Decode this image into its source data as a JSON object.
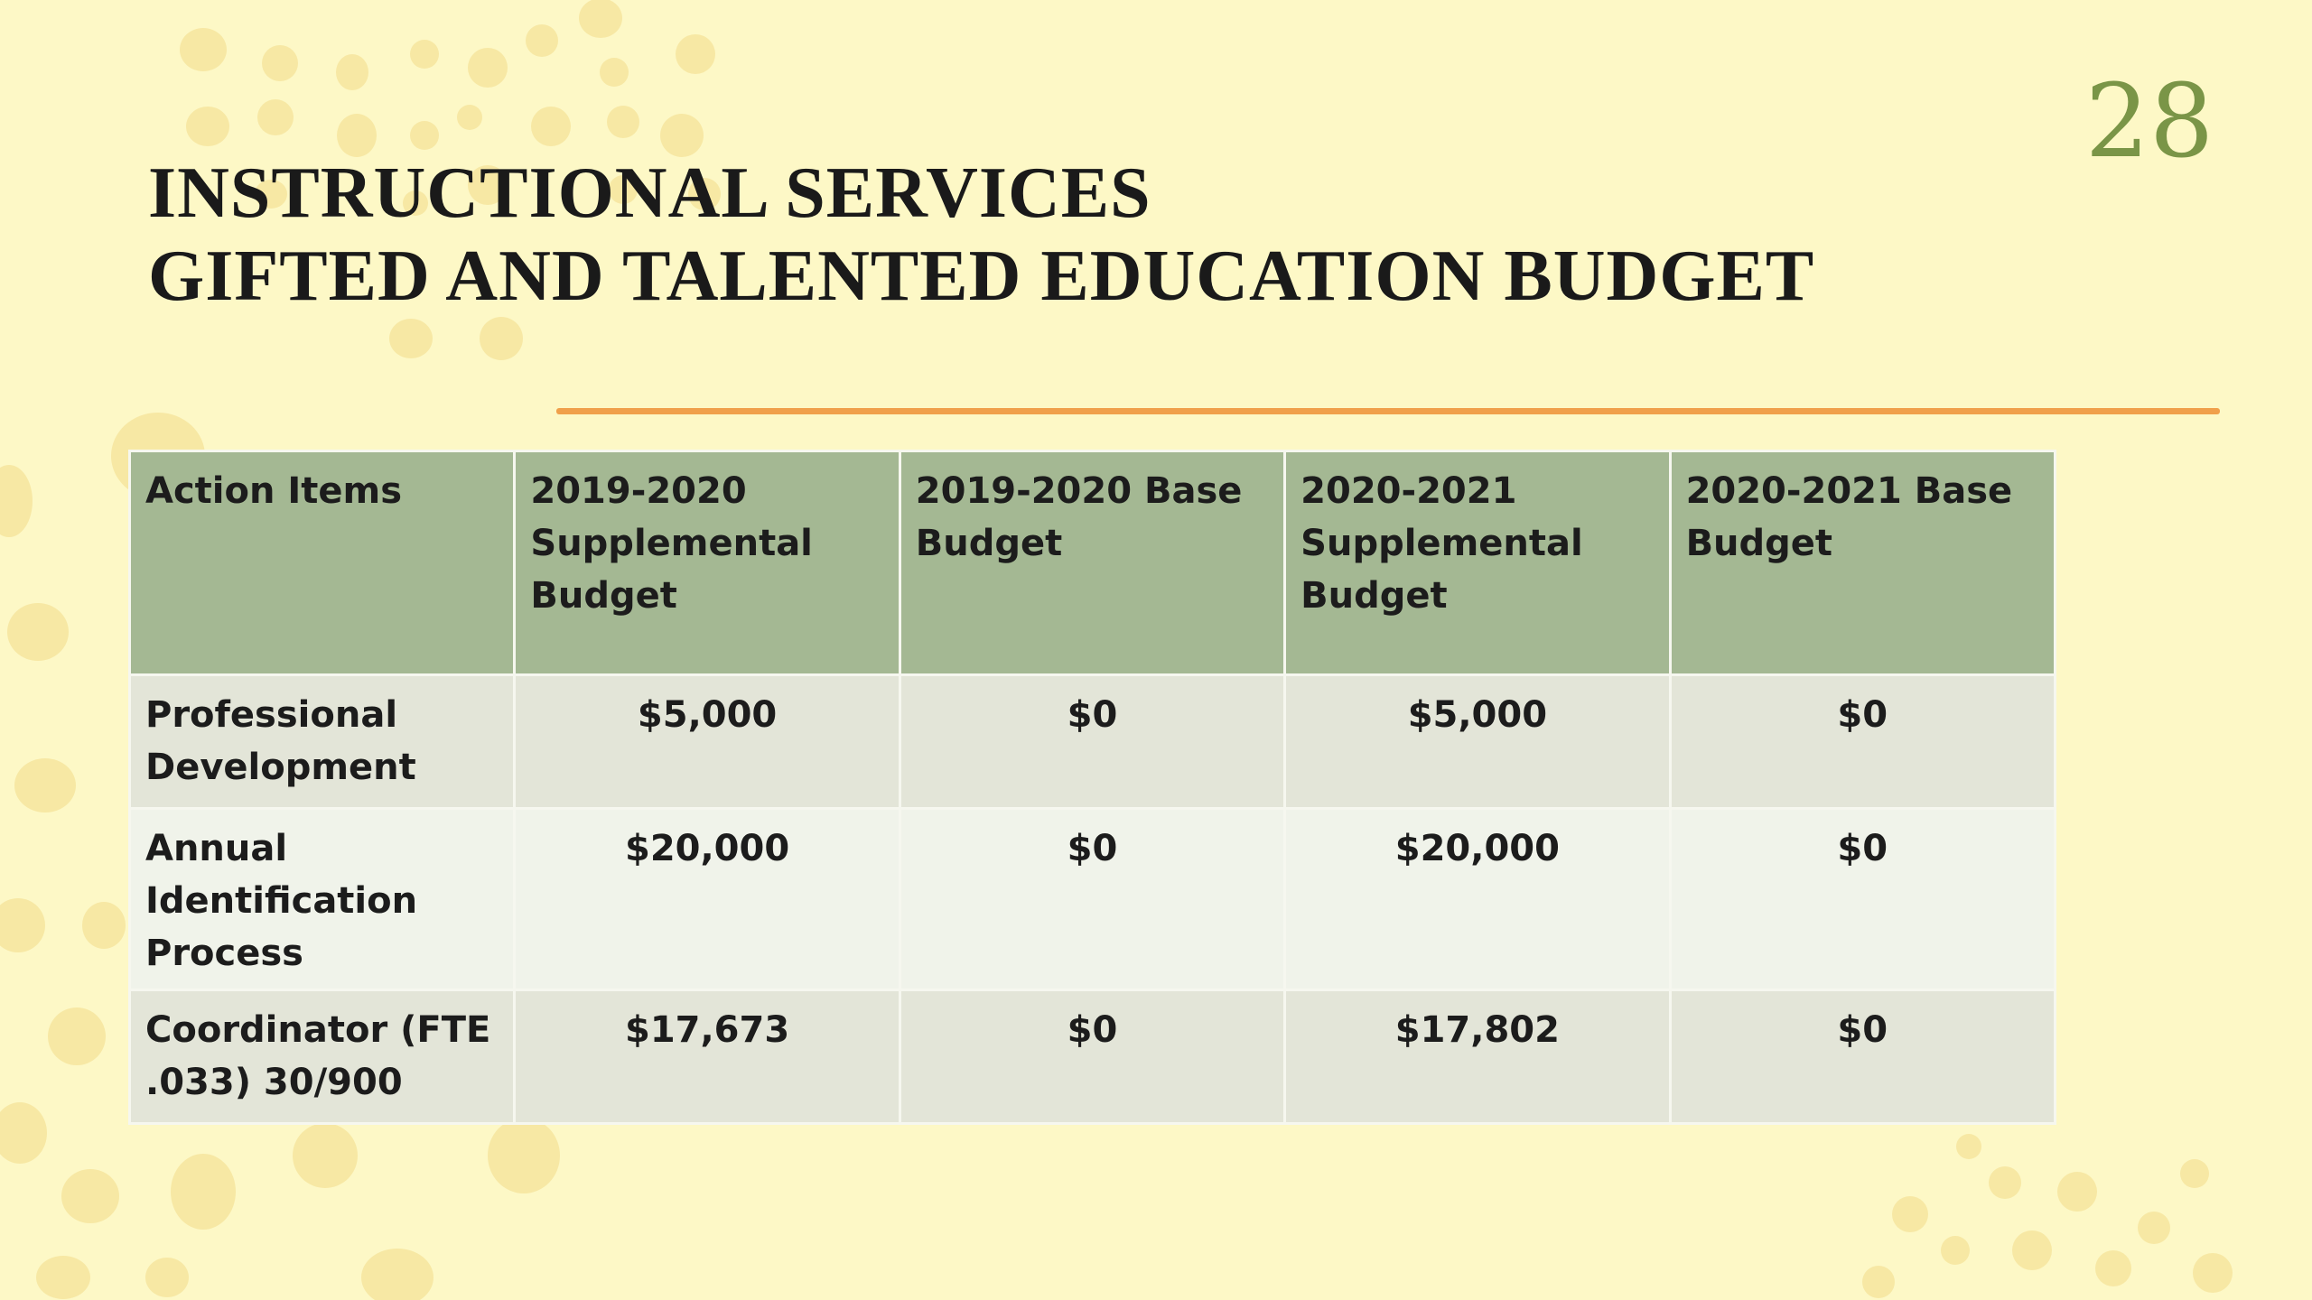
{
  "slide": {
    "number": "28",
    "title_line1": "INSTRUCTIONAL SERVICES",
    "title_line2": "GIFTED AND TALENTED EDUCATION BUDGET",
    "colors": {
      "background": "#fdf8c6",
      "dots": "#f7e8a4",
      "accent_line": "#f0a04b",
      "slide_number": "#7a9547",
      "header_fill": "#a4b893"
    }
  },
  "table": {
    "headers": [
      "Action Items",
      "2019-2020 Supplemental Budget",
      "2019-2020 Base Budget",
      "2020-2021 Supplemental Budget",
      "2020-2021 Base Budget"
    ],
    "rows": [
      {
        "item": "Professional Development",
        "sup_2019": "$5,000",
        "base_2019": "$0",
        "sup_2020": "$5,000",
        "base_2020": "$0"
      },
      {
        "item": "Annual Identification Process",
        "sup_2019": "$20,000",
        "base_2019": "$0",
        "sup_2020": "$20,000",
        "base_2020": "$0"
      },
      {
        "item": "Coordinator (FTE .033)  30/900",
        "sup_2019": "$17,673",
        "base_2019": "$0",
        "sup_2020": "$17,802",
        "base_2020": "$0"
      }
    ]
  }
}
